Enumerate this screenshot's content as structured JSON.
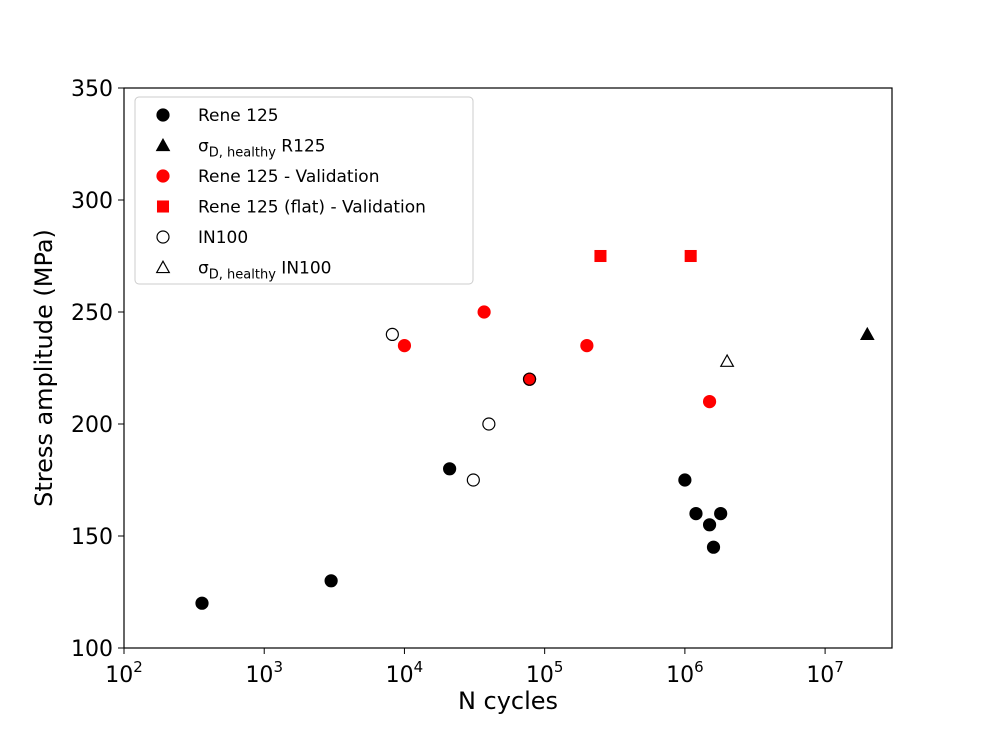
{
  "chart_data": {
    "type": "scatter",
    "title": "",
    "xlabel": "N cycles",
    "ylabel": "Stress amplitude (MPa)",
    "x_scale": "log",
    "xlim": [
      100,
      30000000
    ],
    "ylim": [
      100,
      350
    ],
    "x_ticks": [
      {
        "value": 100,
        "base": "10",
        "exp": "2"
      },
      {
        "value": 1000,
        "base": "10",
        "exp": "3"
      },
      {
        "value": 10000,
        "base": "10",
        "exp": "4"
      },
      {
        "value": 100000,
        "base": "10",
        "exp": "5"
      },
      {
        "value": 1000000,
        "base": "10",
        "exp": "6"
      },
      {
        "value": 10000000,
        "base": "10",
        "exp": "7"
      }
    ],
    "y_ticks": [
      100,
      150,
      200,
      250,
      300,
      350
    ],
    "legend_position": "top-left",
    "series": [
      {
        "name": "Rene 125",
        "label": {
          "main": "Rene 125",
          "sub": "",
          "suffix": ""
        },
        "marker": "circle",
        "filled": true,
        "color": "#000000",
        "points": [
          [
            360,
            120
          ],
          [
            3000,
            130
          ],
          [
            21000,
            180
          ],
          [
            78000,
            220
          ],
          [
            1000000,
            175
          ],
          [
            1200000,
            160
          ],
          [
            1500000,
            155
          ],
          [
            1600000,
            145
          ],
          [
            1800000,
            160
          ]
        ]
      },
      {
        "name": "σD, healthy R125",
        "label": {
          "main": "σ",
          "sub": "D, healthy",
          "suffix": " R125"
        },
        "marker": "triangle",
        "filled": true,
        "color": "#000000",
        "points": [
          [
            20000000,
            240
          ]
        ]
      },
      {
        "name": "Rene 125 - Validation",
        "label": {
          "main": "Rene 125 - Validation",
          "sub": "",
          "suffix": ""
        },
        "marker": "circle",
        "filled": true,
        "color": "#ff0000",
        "points": [
          [
            10000,
            235
          ],
          [
            37000,
            250
          ],
          [
            78000,
            220
          ],
          [
            200000,
            235
          ],
          [
            1500000,
            210
          ]
        ]
      },
      {
        "name": "Rene 125 (flat) - Validation",
        "label": {
          "main": "Rene 125 (flat) - Validation",
          "sub": "",
          "suffix": ""
        },
        "marker": "square",
        "filled": true,
        "color": "#ff0000",
        "points": [
          [
            250000,
            275
          ],
          [
            1100000,
            275
          ]
        ]
      },
      {
        "name": "IN100",
        "label": {
          "main": "IN100",
          "sub": "",
          "suffix": ""
        },
        "marker": "circle",
        "filled": false,
        "color": "#000000",
        "points": [
          [
            8200,
            240
          ],
          [
            31000,
            175
          ],
          [
            40000,
            200
          ]
        ]
      },
      {
        "name": "σD, healthy IN100",
        "label": {
          "main": "σ",
          "sub": "D, healthy",
          "suffix": " IN100"
        },
        "marker": "triangle",
        "filled": false,
        "color": "#000000",
        "points": [
          [
            2000000,
            228
          ]
        ]
      }
    ]
  }
}
